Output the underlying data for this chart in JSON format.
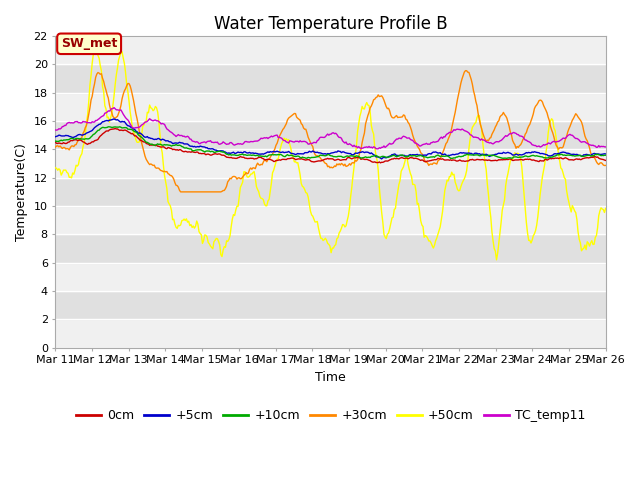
{
  "title": "Water Temperature Profile B",
  "xlabel": "Time",
  "ylabel": "Temperature(C)",
  "ylim": [
    0,
    22
  ],
  "yticks": [
    0,
    2,
    4,
    6,
    8,
    10,
    12,
    14,
    16,
    18,
    20,
    22
  ],
  "xtick_labels": [
    "Mar 11",
    "Mar 12",
    "Mar 13",
    "Mar 14",
    "Mar 15",
    "Mar 16",
    "Mar 17",
    "Mar 18",
    "Mar 19",
    "Mar 20",
    "Mar 21",
    "Mar 22",
    "Mar 23",
    "Mar 24",
    "Mar 25",
    "Mar 26"
  ],
  "legend_labels": [
    "0cm",
    "+5cm",
    "+10cm",
    "+30cm",
    "+50cm",
    "TC_temp11"
  ],
  "legend_colors": [
    "#cc0000",
    "#0000cc",
    "#00aa00",
    "#ff8800",
    "#ffff00",
    "#cc00cc"
  ],
  "annotation_text": "SW_met",
  "annotation_color": "#990000",
  "annotation_bg": "#ffffcc",
  "annotation_border": "#cc0000",
  "fig_bg": "#ffffff",
  "plot_bg_light": "#f0f0f0",
  "plot_bg_dark": "#e0e0e0",
  "grid_color": "#ffffff",
  "title_fontsize": 12,
  "axis_fontsize": 9,
  "tick_fontsize": 8,
  "legend_fontsize": 9
}
